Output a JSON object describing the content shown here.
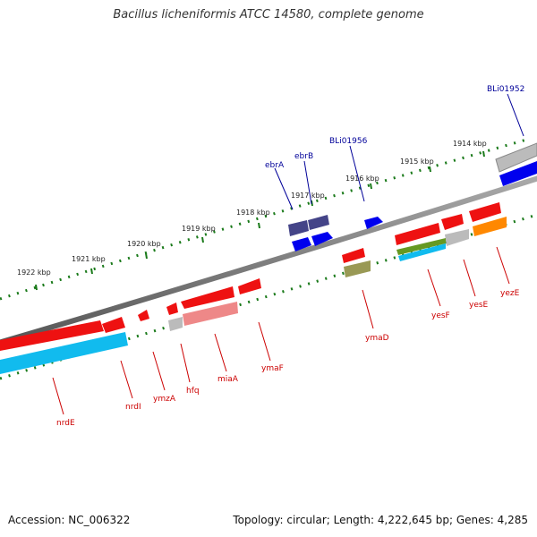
{
  "title": "Bacillus licheniformis ATCC 14580, complete genome",
  "accession": "Accession: NC_006322",
  "summary": "Topology: circular; Length: 4,222,645 bp; Genes: 4,285",
  "colors": {
    "backbone": "#8a8a8a",
    "tick": "#1a7a1a",
    "label_red": "#cc0000",
    "label_blue": "#000099",
    "gene_red": "#ee1111",
    "gene_blue": "#0000ee",
    "gene_navy": "#444488",
    "gene_cyan": "#11bbee",
    "gene_orange": "#ff8800",
    "gene_pink": "#ee8888",
    "gene_gray": "#bbbbbb",
    "gene_olive": "#999955",
    "gene_green": "#669922"
  },
  "kbp_labels": [
    "1914 kbp",
    "1915 kbp",
    "1916 kbp",
    "1917 kbp",
    "1918 kbp",
    "1919 kbp",
    "1920 kbp",
    "1921 kbp",
    "1922 kbp"
  ],
  "upper_gene_labels": [
    "BLi01952",
    "BLi01956",
    "ebrB",
    "ebrA"
  ],
  "lower_gene_labels": [
    "yezE",
    "yesE",
    "yesF",
    "ymaD",
    "ymaF",
    "miaA",
    "hfq",
    "ymzA",
    "nrdI",
    "nrdE"
  ]
}
